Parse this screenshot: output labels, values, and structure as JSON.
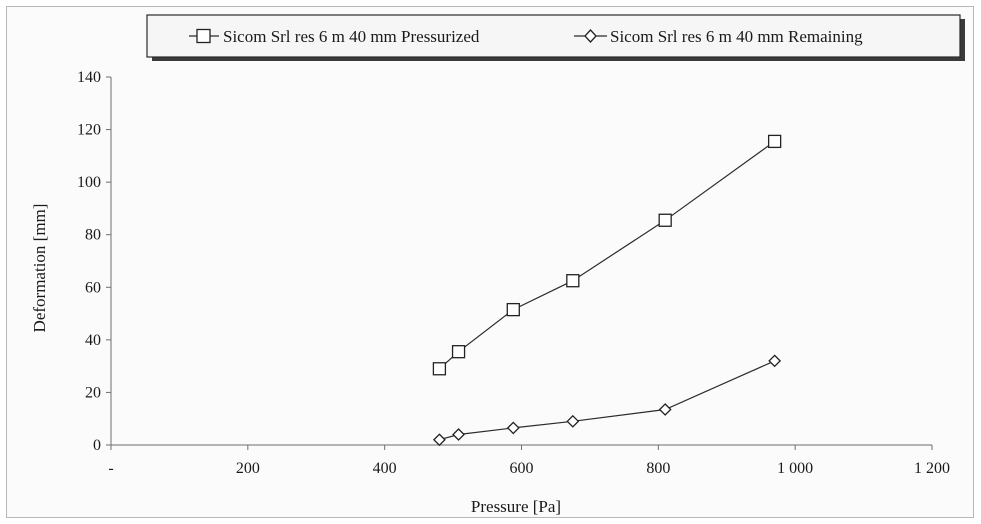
{
  "chart_data": {
    "type": "line",
    "xlabel": "Pressure [Pa]",
    "ylabel": "Deformation [mm]",
    "xlim": [
      0,
      1200
    ],
    "ylim": [
      0,
      140
    ],
    "x_ticks": [
      0,
      200,
      400,
      600,
      800,
      1000,
      1200
    ],
    "x_tick_labels": [
      "-",
      "200",
      "400",
      "600",
      "800",
      "1 000",
      "1 200"
    ],
    "y_ticks": [
      0,
      20,
      40,
      60,
      80,
      100,
      120,
      140
    ],
    "y_tick_labels": [
      "0",
      "20",
      "40",
      "60",
      "80",
      "100",
      "120",
      "140"
    ],
    "grid": false,
    "legend_position": "top",
    "series": [
      {
        "name": "Sicom Srl res 6 m 40 mm Pressurized",
        "marker": "square",
        "x": [
          480,
          508,
          588,
          675,
          810,
          970
        ],
        "y": [
          29,
          35.5,
          51.5,
          62.5,
          85.5,
          115.5
        ]
      },
      {
        "name": "Sicom Srl res 6 m 40 mm Remaining",
        "marker": "diamond",
        "x": [
          480,
          508,
          588,
          675,
          810,
          970
        ],
        "y": [
          2,
          4,
          6.5,
          9,
          13.5,
          32
        ]
      }
    ]
  }
}
